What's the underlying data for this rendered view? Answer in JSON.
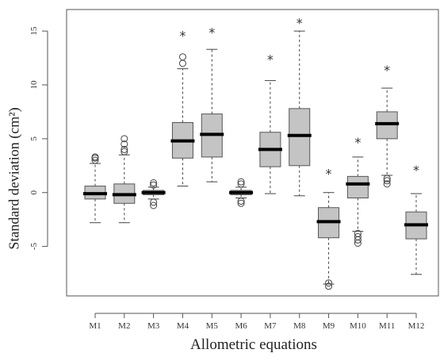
{
  "chart_data": {
    "type": "box",
    "title": "",
    "xlabel": "Allometric equations",
    "ylabel": "Standard deviation (cm²)",
    "ylim": [
      -9.6,
      17
    ],
    "yticks": [
      -5,
      0,
      5,
      10,
      15
    ],
    "ytick_labels": [
      "-5",
      "0",
      "5",
      "10",
      "15"
    ],
    "categories": [
      "M1",
      "M2",
      "M3",
      "M4",
      "M5",
      "M6",
      "M7",
      "M8",
      "M9",
      "M10",
      "M11",
      "M12"
    ],
    "boxes": [
      {
        "label": "M1",
        "whisker_low": -2.8,
        "q1": -0.6,
        "median": -0.1,
        "q3": 0.6,
        "whisker_high": 2.7,
        "outliers": [
          3.0,
          3.2,
          3.3
        ],
        "extreme": null
      },
      {
        "label": "M2",
        "whisker_low": -2.8,
        "q1": -1.0,
        "median": -0.2,
        "q3": 0.8,
        "whisker_high": 3.5,
        "outliers": [
          3.8,
          4.0,
          4.5,
          5.0
        ],
        "extreme": null
      },
      {
        "label": "M3",
        "whisker_low": -0.6,
        "q1": -0.2,
        "median": 0.0,
        "q3": 0.2,
        "whisker_high": 0.5,
        "outliers": [
          -1.2,
          -0.9,
          0.7,
          0.9
        ],
        "extreme": null
      },
      {
        "label": "M4",
        "whisker_low": 0.6,
        "q1": 3.2,
        "median": 4.8,
        "q3": 6.5,
        "whisker_high": 11.5,
        "outliers": [
          12.0,
          12.6
        ],
        "extreme": 14.6
      },
      {
        "label": "M5",
        "whisker_low": 1.0,
        "q1": 3.3,
        "median": 5.4,
        "q3": 7.3,
        "whisker_high": 13.3,
        "outliers": [],
        "extreme": 14.9
      },
      {
        "label": "M6",
        "whisker_low": -0.5,
        "q1": -0.2,
        "median": 0.0,
        "q3": 0.2,
        "whisker_high": 0.5,
        "outliers": [
          -1.0,
          -0.8,
          0.8,
          1.0
        ],
        "extreme": null
      },
      {
        "label": "M7",
        "whisker_low": -0.1,
        "q1": 2.4,
        "median": 4.0,
        "q3": 5.6,
        "whisker_high": 10.4,
        "outliers": [],
        "extreme": 12.4
      },
      {
        "label": "M8",
        "whisker_low": -0.3,
        "q1": 2.5,
        "median": 5.3,
        "q3": 7.8,
        "whisker_high": 15.0,
        "outliers": [],
        "extreme": 15.8
      },
      {
        "label": "M9",
        "whisker_low": -8.5,
        "q1": -4.2,
        "median": -2.7,
        "q3": -1.4,
        "whisker_high": 0.0,
        "outliers": [
          -8.7,
          -8.4
        ],
        "extreme": 1.8
      },
      {
        "label": "M10",
        "whisker_low": -3.6,
        "q1": -0.5,
        "median": 0.8,
        "q3": 1.5,
        "whisker_high": 3.3,
        "outliers": [
          -3.8,
          -4.1,
          -4.4,
          -4.7
        ],
        "extreme": 4.7
      },
      {
        "label": "M11",
        "whisker_low": 1.6,
        "q1": 5.0,
        "median": 6.4,
        "q3": 7.5,
        "whisker_high": 9.7,
        "outliers": [
          0.8,
          1.1,
          1.3
        ],
        "extreme": 11.4
      },
      {
        "label": "M12",
        "whisker_low": -7.6,
        "q1": -4.3,
        "median": -3.0,
        "q3": -1.8,
        "whisker_high": -0.1,
        "outliers": [],
        "extreme": 2.1
      }
    ],
    "grid": false,
    "legend": "none",
    "colors": {
      "box_fill": "#c4c4c4",
      "median": "#000000",
      "whisker": "#444444",
      "frame": "#555555"
    }
  }
}
